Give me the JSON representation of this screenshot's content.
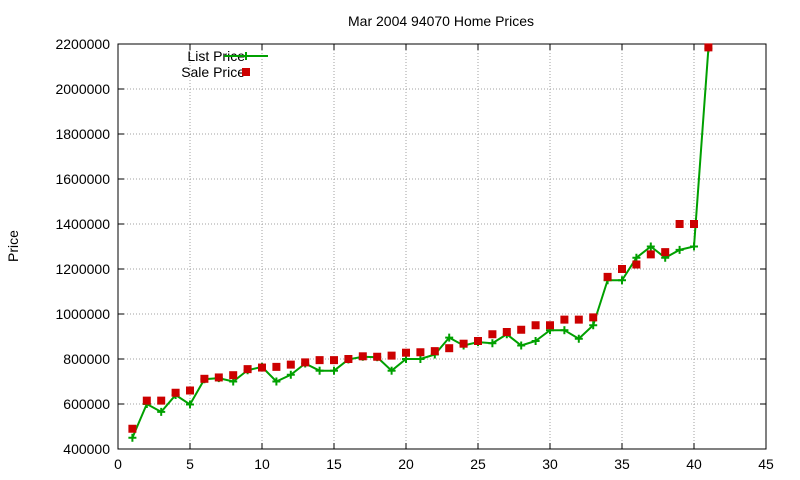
{
  "chart_data": {
    "type": "line",
    "title": "Mar 2004 94070 Home Prices",
    "xlabel": "",
    "ylabel": "Price",
    "xlim": [
      0,
      45
    ],
    "ylim": [
      400000,
      2200000
    ],
    "x_ticks": [
      0,
      5,
      10,
      15,
      20,
      25,
      30,
      35,
      40,
      45
    ],
    "y_ticks": [
      400000,
      600000,
      800000,
      1000000,
      1200000,
      1400000,
      1600000,
      1800000,
      2000000,
      2200000
    ],
    "grid": true,
    "legend_position": "top-left",
    "series": [
      {
        "name": "List Price",
        "style": "linespoints",
        "color": "#00a000",
        "x": [
          1,
          2,
          3,
          4,
          5,
          6,
          7,
          8,
          9,
          10,
          11,
          12,
          13,
          14,
          15,
          16,
          17,
          18,
          19,
          20,
          21,
          22,
          23,
          24,
          25,
          26,
          27,
          28,
          29,
          30,
          31,
          32,
          33,
          34,
          35,
          36,
          37,
          38,
          39,
          40,
          41
        ],
        "y": [
          450000,
          600000,
          565000,
          640000,
          598000,
          710000,
          715000,
          700000,
          750000,
          765000,
          700000,
          730000,
          780000,
          748000,
          748000,
          798000,
          810000,
          808000,
          748000,
          800000,
          800000,
          820000,
          895000,
          860000,
          875000,
          870000,
          910000,
          860000,
          880000,
          928000,
          928000,
          890000,
          950000,
          1150000,
          1150000,
          1250000,
          1300000,
          1250000,
          1285000,
          1300000,
          2180000
        ]
      },
      {
        "name": "Sale Price",
        "style": "points",
        "color": "#cc0000",
        "x": [
          1,
          2,
          3,
          4,
          5,
          6,
          7,
          8,
          9,
          10,
          11,
          12,
          13,
          14,
          15,
          16,
          17,
          18,
          19,
          20,
          21,
          22,
          23,
          24,
          25,
          26,
          27,
          28,
          29,
          30,
          31,
          32,
          33,
          34,
          35,
          36,
          37,
          38,
          39,
          40,
          41
        ],
        "y": [
          490000,
          615000,
          615000,
          650000,
          660000,
          712000,
          718000,
          728000,
          755000,
          762000,
          765000,
          775000,
          785000,
          795000,
          795000,
          800000,
          812000,
          810000,
          815000,
          828000,
          830000,
          835000,
          848000,
          868000,
          880000,
          910000,
          920000,
          930000,
          950000,
          950000,
          975000,
          975000,
          985000,
          1165000,
          1200000,
          1220000,
          1265000,
          1275000,
          1400000,
          1400000,
          2185000
        ]
      }
    ]
  }
}
